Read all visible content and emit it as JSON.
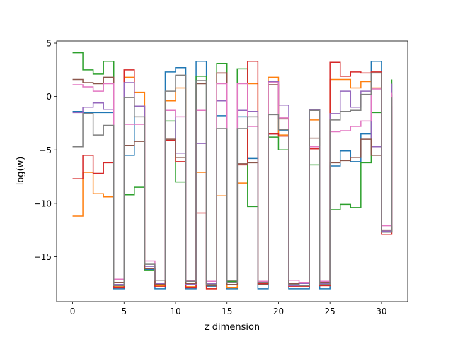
{
  "chart_data": {
    "type": "line",
    "step": "post",
    "xlabel": "z dimension",
    "ylabel": "log(w)",
    "xlim": [
      -1.55,
      32.55
    ],
    "ylim": [
      -19.2,
      5.2
    ],
    "xticks": [
      0,
      5,
      10,
      15,
      20,
      25,
      30
    ],
    "yticks": [
      5,
      0,
      -5,
      -10,
      -15
    ],
    "ytick_labels": [
      "5",
      "0",
      "−5",
      "−10",
      "−15"
    ],
    "grid": false,
    "legend": "none",
    "series": [
      {
        "color": "#1f77b4",
        "values": [
          -1.4,
          -1.5,
          -1.5,
          -1.5,
          -18,
          -5.5,
          -0.9,
          -16.2,
          -18,
          2.3,
          2.7,
          -18,
          3.3,
          -17.8,
          -1.8,
          -18,
          -1.9,
          -5.8,
          -18,
          -3.5,
          -3.2,
          -18,
          -18,
          -1.2,
          -18,
          -6.5,
          -5.1,
          -6.1,
          -3.5,
          3.3,
          -12.7,
          -1.9
        ]
      },
      {
        "color": "#ff7f0e",
        "values": [
          -11.2,
          -7.1,
          -9.1,
          -9.4,
          -17.8,
          1.8,
          0.4,
          -16.1,
          -17.7,
          -0.4,
          0.8,
          -17.8,
          -7.1,
          -18,
          -9.3,
          -17.9,
          -8.1,
          1.2,
          -17.4,
          1.8,
          -3.6,
          -17.8,
          -17.7,
          -2.2,
          -17.7,
          1.6,
          1.6,
          0.8,
          1.4,
          0.8,
          -12.6,
          -1.7
        ]
      },
      {
        "color": "#2ca02c",
        "values": [
          4.1,
          2.5,
          2.1,
          3.3,
          -17.6,
          -9.2,
          -8.5,
          -16.3,
          -17.5,
          -2.3,
          -8.0,
          -17.6,
          1.9,
          -17.5,
          3.1,
          -17.3,
          2.6,
          -10.3,
          -17.4,
          -3.8,
          -5.0,
          -17.6,
          -17.5,
          -6.4,
          -17.4,
          -10.6,
          -10.1,
          -10.4,
          -6.2,
          -1.5,
          -12.6,
          1.6
        ]
      },
      {
        "color": "#d62728",
        "values": [
          -7.7,
          -5.5,
          -7.2,
          -6.2,
          -17.9,
          2.5,
          -0.9,
          -16.1,
          -17.8,
          -4.1,
          -6.1,
          -17.9,
          -10.9,
          -18,
          2.2,
          -17.6,
          -6.4,
          3.3,
          -17.5,
          -3.5,
          -3.7,
          -17.8,
          -17.8,
          -4.9,
          -17.7,
          3.2,
          1.9,
          2.3,
          2.2,
          2.3,
          -12.9,
          -0.9
        ]
      },
      {
        "color": "#9467bd",
        "values": [
          -1.5,
          -1.0,
          -0.6,
          -1.2,
          -17.6,
          1.3,
          -0.9,
          -15.9,
          -17.5,
          -1.3,
          -5.3,
          -17.6,
          -4.4,
          -17.5,
          -0.4,
          -17.6,
          -1.3,
          -1.4,
          -17.6,
          1.4,
          -0.8,
          -17.7,
          -17.5,
          -1.2,
          -17.5,
          -1.6,
          0.5,
          -1.0,
          0.5,
          -4.7,
          -12.6,
          1.2
        ]
      },
      {
        "color": "#8c564b",
        "values": [
          1.6,
          1.3,
          1.2,
          1.8,
          -17.4,
          -4.6,
          -4.2,
          -16.1,
          -17.6,
          -4.0,
          -5.7,
          -17.5,
          1.2,
          -17.7,
          2.2,
          -17.6,
          -6.3,
          -6.2,
          -17.6,
          1.1,
          -2.1,
          -17.5,
          -17.4,
          -3.9,
          -17.4,
          -6.2,
          -6.0,
          -5.7,
          -4.0,
          -5.5,
          -12.5,
          0.2
        ]
      },
      {
        "color": "#e377c2",
        "values": [
          1.1,
          0.9,
          0.5,
          1.2,
          -17.1,
          -2.6,
          -2.6,
          -15.4,
          -17.2,
          -1.3,
          -1.9,
          -17.2,
          -1.3,
          -17.3,
          1.2,
          -17.2,
          1.2,
          -2.8,
          -17.3,
          1.3,
          -2.0,
          -17.2,
          -17.4,
          -4.7,
          -17.3,
          -3.3,
          -3.2,
          -2.8,
          -2.3,
          0.7,
          -12.1,
          0.4
        ]
      },
      {
        "color": "#7f7f7f",
        "values": [
          -4.7,
          -1.6,
          -3.6,
          -2.7,
          -17.7,
          -0.1,
          -1.9,
          -15.7,
          -17.2,
          0.5,
          2.0,
          -17.3,
          1.5,
          -17.6,
          -3.0,
          -17.4,
          -3.0,
          -1.9,
          -17.4,
          -1.7,
          -3.1,
          -17.6,
          -17.7,
          -1.3,
          -17.6,
          -2.2,
          -1.4,
          -1.3,
          0.2,
          2.2,
          -12.7,
          -0.1
        ]
      }
    ]
  }
}
